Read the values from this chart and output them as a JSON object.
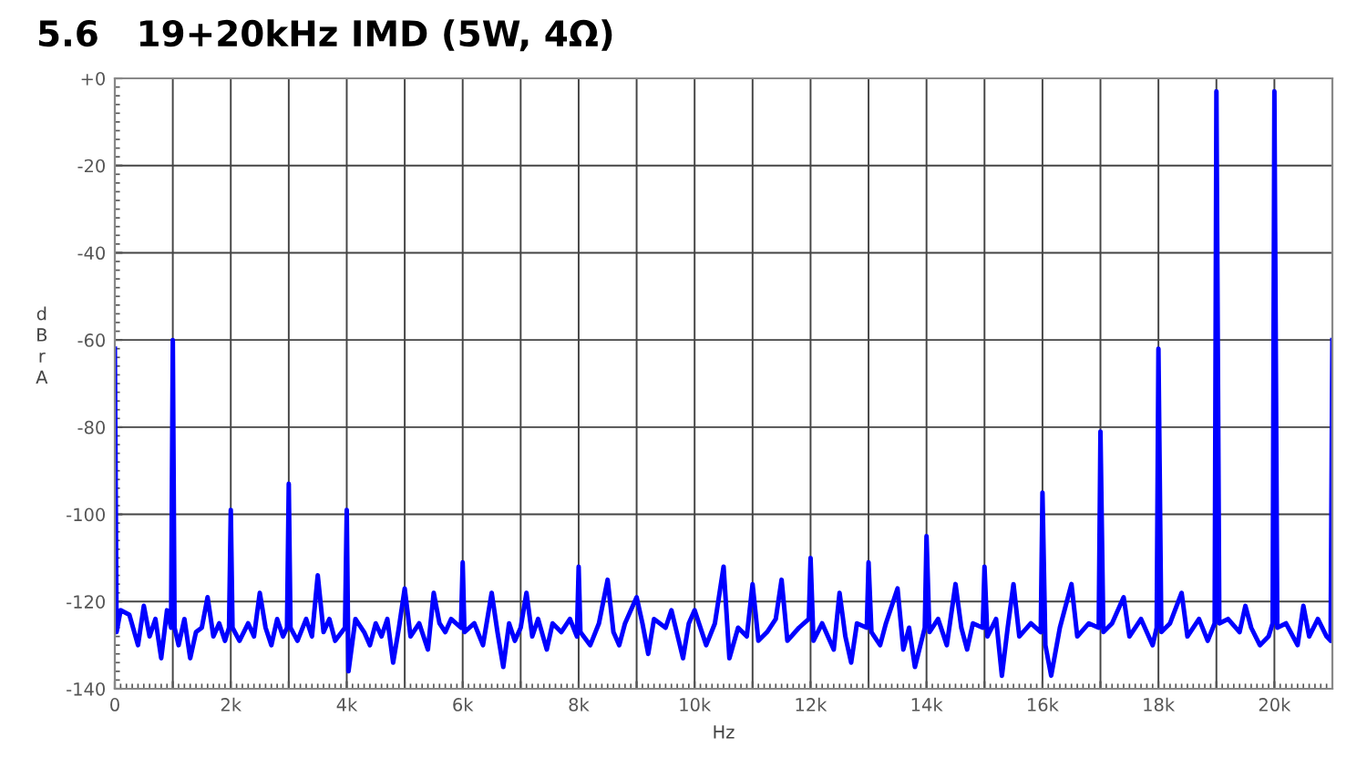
{
  "chart_data": {
    "type": "line",
    "title": "5.6   19+20kHz IMD (5W, 4Ω)",
    "xlabel": "Hz",
    "ylabel": "dBrA",
    "xlim": [
      0,
      21000
    ],
    "ylim": [
      -140,
      0
    ],
    "xticks": [
      0,
      {
        "value": 1000,
        "label": null
      },
      {
        "value": 2000,
        "label": "2k"
      },
      {
        "value": 3000,
        "label": null
      },
      {
        "value": 4000,
        "label": "4k"
      },
      {
        "value": 5000,
        "label": null
      },
      {
        "value": 6000,
        "label": "6k"
      },
      {
        "value": 7000,
        "label": null
      },
      {
        "value": 8000,
        "label": "8k"
      },
      {
        "value": 9000,
        "label": null
      },
      {
        "value": 10000,
        "label": "10k"
      },
      {
        "value": 11000,
        "label": null
      },
      {
        "value": 12000,
        "label": "12k"
      },
      {
        "value": 13000,
        "label": null
      },
      {
        "value": 14000,
        "label": "14k"
      },
      {
        "value": 15000,
        "label": null
      },
      {
        "value": 16000,
        "label": "16k"
      },
      {
        "value": 17000,
        "label": null
      },
      {
        "value": 18000,
        "label": "18k"
      },
      {
        "value": 19000,
        "label": null
      },
      {
        "value": 20000,
        "label": "20k"
      }
    ],
    "yticks": [
      {
        "value": 0,
        "label": "+0"
      },
      -20,
      -40,
      -60,
      -80,
      -100,
      -120,
      -140
    ],
    "grid": true,
    "marker": "none",
    "line_style": "solid",
    "series": [
      {
        "color": "#0000ff",
        "x": [
          0,
          30,
          100,
          250,
          400,
          500,
          600,
          700,
          800,
          900,
          970,
          1000,
          1030,
          1100,
          1200,
          1300,
          1400,
          1500,
          1600,
          1700,
          1800,
          1900,
          1970,
          2000,
          2030,
          2150,
          2300,
          2400,
          2500,
          2600,
          2700,
          2800,
          2900,
          2970,
          3000,
          3030,
          3150,
          3300,
          3400,
          3500,
          3600,
          3700,
          3800,
          3970,
          4000,
          4030,
          4150,
          4300,
          4400,
          4500,
          4600,
          4700,
          4800,
          4900,
          5000,
          5100,
          5250,
          5400,
          5500,
          5600,
          5700,
          5800,
          5970,
          6000,
          6030,
          6200,
          6350,
          6500,
          6600,
          6700,
          6800,
          6900,
          7000,
          7100,
          7200,
          7300,
          7450,
          7550,
          7700,
          7850,
          7970,
          8000,
          8030,
          8200,
          8350,
          8500,
          8600,
          8700,
          8800,
          9000,
          9100,
          9200,
          9300,
          9500,
          9600,
          9800,
          9900,
          10000,
          10200,
          10350,
          10500,
          10600,
          10750,
          10900,
          11000,
          11100,
          11250,
          11400,
          11500,
          11600,
          11800,
          11970,
          12000,
          12050,
          12200,
          12400,
          12500,
          12600,
          12700,
          12800,
          12970,
          13000,
          13050,
          13200,
          13300,
          13500,
          13600,
          13700,
          13800,
          13970,
          14000,
          14050,
          14200,
          14350,
          14500,
          14600,
          14700,
          14800,
          14970,
          15000,
          15050,
          15200,
          15300,
          15400,
          15500,
          15600,
          15800,
          15970,
          16000,
          16050,
          16150,
          16300,
          16500,
          16600,
          16800,
          16970,
          17000,
          17050,
          17200,
          17400,
          17500,
          17700,
          17900,
          17970,
          18000,
          18050,
          18200,
          18400,
          18500,
          18700,
          18850,
          18970,
          19000,
          19050,
          19200,
          19400,
          19500,
          19600,
          19750,
          19900,
          19970,
          20000,
          20050,
          20200,
          20400,
          20500,
          20600,
          20750,
          20900,
          20970,
          21000
        ],
        "values": [
          -62,
          -127,
          -122,
          -123,
          -130,
          -121,
          -128,
          -124,
          -133,
          -122,
          -126,
          -60,
          -126,
          -130,
          -124,
          -133,
          -127,
          -126,
          -119,
          -128,
          -125,
          -129,
          -126,
          -99,
          -126,
          -129,
          -125,
          -128,
          -118,
          -126,
          -130,
          -124,
          -128,
          -126,
          -93,
          -126,
          -129,
          -124,
          -128,
          -114,
          -127,
          -124,
          -129,
          -126,
          -99,
          -136,
          -124,
          -127,
          -130,
          -125,
          -128,
          -124,
          -134,
          -126,
          -117,
          -128,
          -125,
          -131,
          -118,
          -125,
          -127,
          -124,
          -126,
          -111,
          -127,
          -125,
          -130,
          -118,
          -127,
          -135,
          -125,
          -129,
          -126,
          -118,
          -128,
          -124,
          -131,
          -125,
          -127,
          -124,
          -128,
          -112,
          -127,
          -130,
          -125,
          -115,
          -127,
          -130,
          -125,
          -119,
          -125,
          -132,
          -124,
          -126,
          -122,
          -133,
          -125,
          -122,
          -130,
          -125,
          -112,
          -133,
          -126,
          -128,
          -116,
          -129,
          -127,
          -124,
          -115,
          -129,
          -126,
          -124,
          -110,
          -129,
          -125,
          -131,
          -118,
          -128,
          -134,
          -125,
          -126,
          -111,
          -127,
          -130,
          -125,
          -117,
          -131,
          -126,
          -135,
          -126,
          -105,
          -127,
          -124,
          -130,
          -116,
          -126,
          -131,
          -125,
          -126,
          -112,
          -128,
          -124,
          -137,
          -126,
          -116,
          -128,
          -125,
          -127,
          -95,
          -130,
          -137,
          -126,
          -116,
          -128,
          -125,
          -126,
          -81,
          -127,
          -125,
          -119,
          -128,
          -124,
          -130,
          -126,
          -62,
          -127,
          -125,
          -118,
          -128,
          -124,
          -129,
          -125,
          -3,
          -125,
          -124,
          -127,
          -121,
          -126,
          -130,
          -128,
          -125,
          -3,
          -126,
          -125,
          -130,
          -121,
          -128,
          -124,
          -128,
          -129,
          -60
        ]
      }
    ]
  }
}
